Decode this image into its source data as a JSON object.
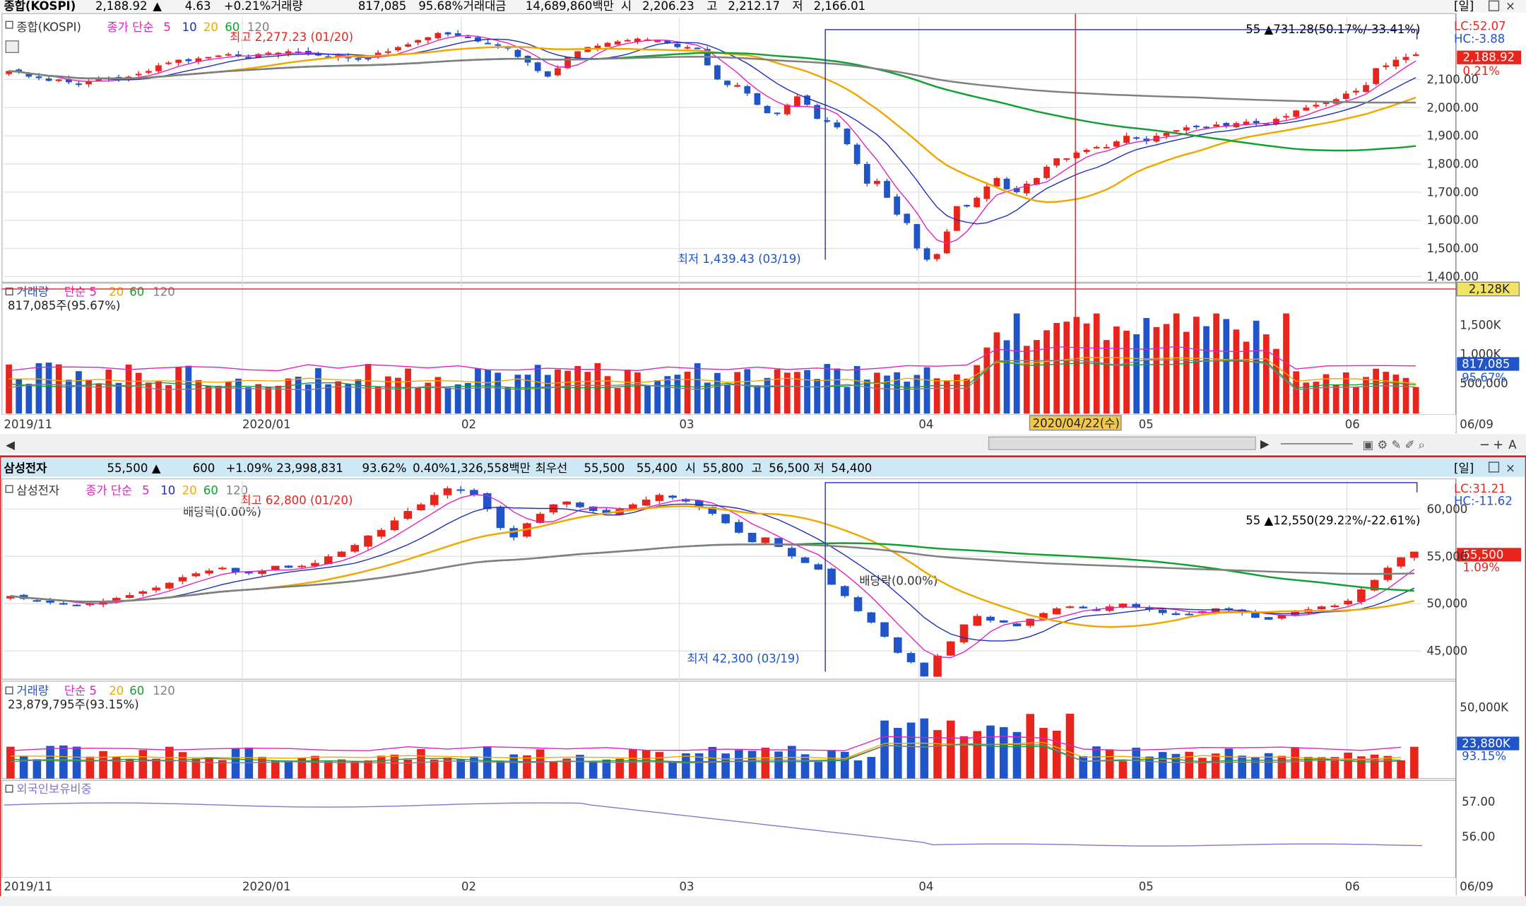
{
  "colors": {
    "up": "#e8251d",
    "down": "#1f55c9",
    "ma5": "#e020c0",
    "ma10": "#1c2db8",
    "ma20": "#f0a800",
    "ma60": "#12a030",
    "ma120": "#808080",
    "panel_border": "#cc2222",
    "header_bg": "#cfe8f5",
    "crosshair": "#e02020",
    "foreign_line": "#8a70d0"
  },
  "top_panel": {
    "header": {
      "name": "종합(KOSPI)",
      "close": "2,188.92",
      "arrow": "▲",
      "change": "4.63",
      "change_pct": "+0.21%",
      "volume_label": "거래량",
      "volume": "817,085",
      "volume_ratio": "95.68%",
      "amount_label": "거래대금",
      "amount": "14,689,860백만",
      "open_label": "시",
      "open": "2,206.23",
      "high_label": "고",
      "high": "2,212.17",
      "low_label": "저",
      "low": "2,166.01",
      "period": "[일]"
    },
    "legend": {
      "name": "종합(KOSPI)",
      "ma_label": "종가 단순",
      "ma5": "5",
      "ma10": "10",
      "ma20": "20",
      "ma60": "60",
      "ma120": "120"
    },
    "annotations": {
      "high": "최고 2,277.23 (01/20)",
      "low": "최저 1,439.43 (03/19)",
      "range": "55 ▲731.28(50.17%/-33.41%)"
    },
    "lc": "LC:52.07",
    "hc": "HC:-3.88",
    "price_tag": "2,188.92",
    "pct_tag": "0.21%",
    "vol_legend": {
      "name": "거래량",
      "ma_label": "단순 5",
      "ma20": "20",
      "ma60": "60",
      "ma120": "120"
    },
    "vol_text": "817,085주(95.67%)",
    "vol_axis_ticks": [
      "1,500K",
      "1,000K",
      "500,000"
    ],
    "vol_tag": "817,085",
    "vol_pct": "95.67%",
    "cross_vol_tag": "2,128K",
    "date_tag": "2020/04/22(수)"
  },
  "bottom_panel": {
    "header": {
      "name": "삼성전자",
      "close": "55,500",
      "arrow": "▲",
      "change": "600",
      "change_pct": "+1.09%",
      "volume": "23,998,831",
      "volume_ratio": "93.62%",
      "turnover": "0.40%",
      "amount": "1,326,558백만",
      "preferred_label": "최우선",
      "ask": "55,500",
      "bid": "55,400",
      "open_label": "시",
      "open": "55,800",
      "high_label": "고",
      "high": "56,500",
      "low_label": "저",
      "low": "54,400",
      "period": "[일]"
    },
    "legend": {
      "name": "삼성전자",
      "ma_label": "종가 단순",
      "ma5": "5",
      "ma10": "10",
      "ma20": "20",
      "ma60": "60",
      "ma120": "120"
    },
    "annotations": {
      "high": "최고 62,800 (01/20)",
      "low": "최저 42,300 (03/19)",
      "range": "55 ▲12,550(29.22%/-22.61%)",
      "div1": "배당락(0.00%)",
      "div2": "배당락(0.00%)"
    },
    "lc": "LC:31.21",
    "hc": "HC:-11.62",
    "price_tag": "55,500",
    "pct_tag": "1.09%",
    "vol_legend": {
      "name": "거래량",
      "ma_label": "단순 5",
      "ma20": "20",
      "ma60": "60",
      "ma120": "120"
    },
    "vol_text": "23,879,795주(93.15%)",
    "vol_axis_ticks": [
      "50,000K"
    ],
    "vol_tag": "23,880K",
    "vol_pct": "93.15%",
    "foreign_label": "외국인보유비중",
    "foreign_ticks": [
      "57.00",
      "56.00"
    ]
  },
  "x_labels": [
    "2019/11",
    "2020/01",
    "02",
    "03",
    "04",
    "05",
    "06",
    "06/09"
  ],
  "chart_data": [
    {
      "type": "candlestick",
      "title": "종합(KOSPI)",
      "x": [
        "2019/11",
        "2020/01",
        "02",
        "03",
        "04",
        "05",
        "06",
        "06/09"
      ],
      "y_ticks": [
        2100,
        2000,
        1900,
        1800,
        1700,
        1600,
        1500,
        1400
      ],
      "ylim": [
        1380,
        2320
      ],
      "close_series": [
        2130,
        2125,
        2110,
        2105,
        2095,
        2100,
        2090,
        2085,
        2095,
        2100,
        2105,
        2102,
        2110,
        2120,
        2130,
        2150,
        2160,
        2170,
        2165,
        2175,
        2180,
        2185,
        2190,
        2185,
        2180,
        2190,
        2195,
        2195,
        2200,
        2195,
        2190,
        2185,
        2180,
        2185,
        2175,
        2170,
        2175,
        2195,
        2200,
        2215,
        2225,
        2240,
        2250,
        2265,
        2260,
        2255,
        2250,
        2235,
        2230,
        2220,
        2210,
        2180,
        2160,
        2130,
        2110,
        2140,
        2180,
        2200,
        2215,
        2220,
        2230,
        2235,
        2240,
        2245,
        2242,
        2238,
        2230,
        2215,
        2215,
        2210,
        2150,
        2100,
        2080,
        2080,
        2050,
        2010,
        1980,
        1980,
        2010,
        2040,
        2010,
        1960,
        1950,
        1930,
        1870,
        1800,
        1730,
        1740,
        1680,
        1620,
        1590,
        1500,
        1460,
        1480,
        1560,
        1650,
        1650,
        1680,
        1720,
        1750,
        1710,
        1700,
        1730,
        1750,
        1790,
        1820,
        1820,
        1840,
        1850,
        1860,
        1860,
        1880,
        1900,
        1890,
        1880,
        1900,
        1910,
        1920,
        1930,
        1935,
        1930,
        1940,
        1935,
        1945,
        1950,
        1945,
        1945,
        1960,
        1970,
        1990,
        2000,
        2010,
        2020,
        2030,
        2050,
        2060,
        2080,
        2140,
        2150,
        2170,
        2180,
        2189
      ],
      "close_labels": {
        "open": "2,206.23",
        "high": "2,212.17",
        "low": "2,166.01",
        "close": "2,188.92"
      }
    },
    {
      "type": "candlestick",
      "title": "삼성전자",
      "x": [
        "2019/11",
        "2020/01",
        "02",
        "03",
        "04",
        "05",
        "06",
        "06/09"
      ],
      "y_ticks": [
        60000,
        55000,
        50000,
        45000
      ],
      "ylim": [
        42000,
        63000
      ],
      "close_series": [
        50800,
        50500,
        50300,
        50100,
        49900,
        49800,
        50000,
        50300,
        50600,
        50900,
        51300,
        51700,
        52200,
        52800,
        53200,
        53500,
        53800,
        53300,
        53200,
        53500,
        54000,
        53800,
        54000,
        54300,
        55000,
        55500,
        56200,
        57200,
        57800,
        58800,
        59800,
        60500,
        61500,
        62200,
        62000,
        61500,
        60000,
        58000,
        57000,
        58500,
        59500,
        60500,
        60800,
        60200,
        59800,
        59500,
        60000,
        60500,
        61000,
        61500,
        61200,
        60800,
        60200,
        59500,
        58500,
        57500,
        56500,
        57000,
        56000,
        55000,
        54300,
        53600,
        52000,
        50800,
        49200,
        48000,
        46500,
        44800,
        43800,
        42300,
        44500,
        46000,
        47800,
        48700,
        48200,
        48000,
        47600,
        48400,
        49000,
        49500,
        49700,
        49500,
        49300,
        49700,
        50000,
        49600,
        49400,
        49000,
        48800,
        48900,
        49200,
        49500,
        49300,
        49000,
        48500,
        48300,
        48800,
        49200,
        49400,
        49700,
        49800,
        50300,
        51500,
        52500,
        53800,
        54900,
        55500
      ]
    }
  ]
}
